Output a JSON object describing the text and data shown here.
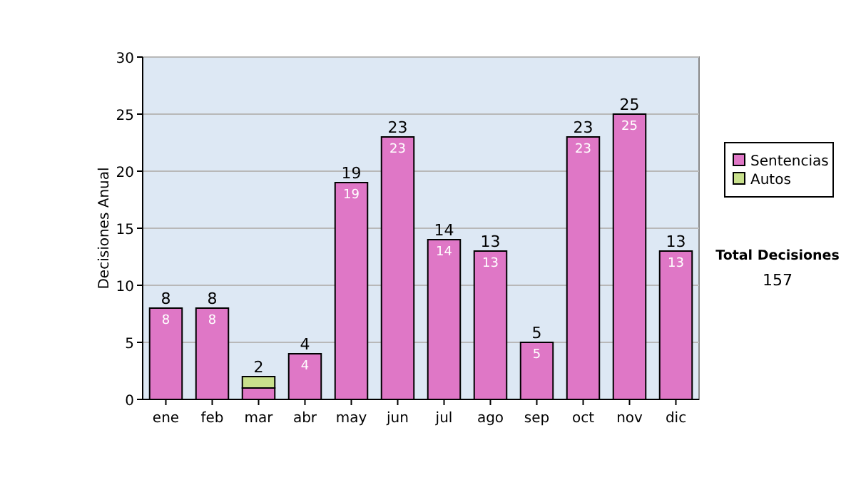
{
  "chart_data": {
    "type": "bar",
    "stacked": true,
    "ylabel": "Decisiones Anual",
    "categories": [
      "ene",
      "feb",
      "mar",
      "abr",
      "may",
      "jun",
      "jul",
      "ago",
      "sep",
      "oct",
      "nov",
      "dic"
    ],
    "series": [
      {
        "name": "Sentencias",
        "color": "#df77c6",
        "values": [
          8,
          8,
          1,
          4,
          19,
          23,
          14,
          13,
          5,
          23,
          25,
          13
        ],
        "value_labels": [
          "8",
          "8",
          null,
          "4",
          "19",
          "23",
          "14",
          "13",
          "5",
          "23",
          "25",
          "13"
        ]
      },
      {
        "name": "Autos",
        "color": "#c8e08c",
        "values": [
          0,
          0,
          1,
          0,
          0,
          0,
          0,
          0,
          0,
          0,
          0,
          0
        ]
      }
    ],
    "totals": [
      "8",
      "8",
      "2",
      "4",
      "19",
      "23",
      "14",
      "13",
      "5",
      "23",
      "25",
      "13"
    ],
    "ylim": [
      0,
      30
    ],
    "yticks": [
      0,
      5,
      10,
      15,
      20,
      25,
      30
    ],
    "grid": "y",
    "legend": "right",
    "annotations": [
      "Total Decisiones",
      "157"
    ]
  }
}
